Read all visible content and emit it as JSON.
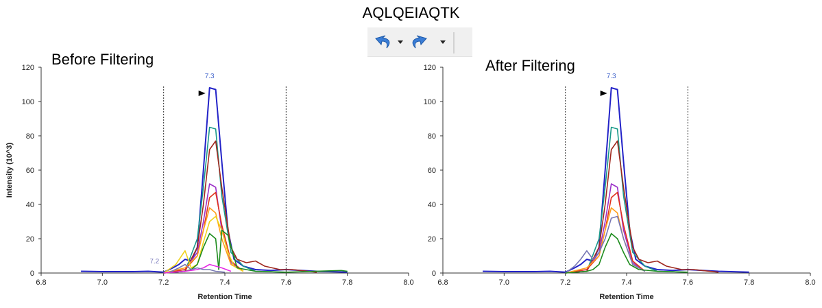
{
  "figure_title": "AQLQEIAQTK",
  "toolbar": {
    "undo_icon": "undo-icon",
    "redo_icon": "redo-icon",
    "dropdown_icon": "chevron-down-icon"
  },
  "colors": {
    "blue": "#2323c8",
    "teal": "#1a9a8a",
    "brown": "#a0281e",
    "purple": "#9b30c8",
    "red": "#e0321e",
    "orange": "#ffa01e",
    "yellow": "#f0d21e",
    "green": "#1e8c1e",
    "magenta": "#e628e6",
    "slate": "#7878b4"
  },
  "chart_data": [
    {
      "type": "line",
      "title": "Before Filtering",
      "xlabel": "Retention Time",
      "ylabel": "Intensity (10^3)",
      "xlim": [
        6.8,
        8.0
      ],
      "ylim": [
        0,
        120
      ],
      "xticks": [
        "6.8",
        "7.0",
        "7.2",
        "7.4",
        "7.6",
        "7.8",
        "8.0"
      ],
      "yticks": [
        "0",
        "20",
        "40",
        "60",
        "80",
        "100",
        "120"
      ],
      "boundaries": [
        7.2,
        7.6
      ],
      "peak_marker": {
        "x": 7.35,
        "y": 108
      },
      "annotations": [
        {
          "text": "7.3",
          "x": 7.35,
          "y": 112,
          "color": "#4466cc"
        },
        {
          "text": "7.2",
          "x": 7.17,
          "y": 4,
          "color": "#7777bb"
        }
      ],
      "series": [
        {
          "color": "blue",
          "x": [
            6.93,
            7.0,
            7.1,
            7.15,
            7.2,
            7.23,
            7.25,
            7.27,
            7.29,
            7.31,
            7.33,
            7.35,
            7.37,
            7.39,
            7.41,
            7.43,
            7.46,
            7.5,
            7.55,
            7.6,
            7.7,
            7.8
          ],
          "y": [
            1,
            0.8,
            0.8,
            1,
            0.5,
            3,
            5,
            8,
            7,
            15,
            60,
            108,
            107,
            65,
            25,
            8,
            4,
            2,
            1.5,
            2,
            1,
            0.5
          ]
        },
        {
          "color": "teal",
          "x": [
            7.2,
            7.27,
            7.31,
            7.33,
            7.35,
            7.37,
            7.39,
            7.42,
            7.46,
            7.5,
            7.6
          ],
          "y": [
            0,
            1,
            20,
            50,
            85,
            84,
            45,
            12,
            4,
            1,
            0.5
          ]
        },
        {
          "color": "brown",
          "x": [
            7.2,
            7.27,
            7.31,
            7.33,
            7.35,
            7.37,
            7.39,
            7.42,
            7.44,
            7.47,
            7.5,
            7.53,
            7.58,
            7.62,
            7.7
          ],
          "y": [
            0,
            1,
            15,
            40,
            72,
            77,
            50,
            15,
            8,
            6,
            7,
            4,
            2,
            2,
            0.5
          ]
        },
        {
          "color": "purple",
          "x": [
            7.2,
            7.27,
            7.31,
            7.33,
            7.35,
            7.37,
            7.39,
            7.42,
            7.46
          ],
          "y": [
            0,
            2,
            12,
            30,
            52,
            50,
            25,
            6,
            1
          ]
        },
        {
          "color": "red",
          "x": [
            7.2,
            7.27,
            7.31,
            7.33,
            7.35,
            7.37,
            7.39,
            7.42,
            7.46
          ],
          "y": [
            0,
            2,
            10,
            25,
            44,
            47,
            28,
            7,
            1
          ]
        },
        {
          "color": "orange",
          "x": [
            7.2,
            7.27,
            7.31,
            7.33,
            7.35,
            7.37,
            7.39,
            7.42,
            7.46
          ],
          "y": [
            0,
            3,
            10,
            25,
            38,
            35,
            20,
            5,
            1
          ]
        },
        {
          "color": "yellow",
          "x": [
            7.2,
            7.24,
            7.27,
            7.29,
            7.31,
            7.33,
            7.35,
            7.37,
            7.39,
            7.41,
            7.43,
            7.46
          ],
          "y": [
            0,
            5,
            13,
            3,
            5,
            18,
            30,
            33,
            25,
            12,
            4,
            1
          ]
        },
        {
          "color": "green",
          "x": [
            7.2,
            7.27,
            7.29,
            7.31,
            7.33,
            7.35,
            7.37,
            7.38,
            7.39,
            7.41,
            7.44,
            7.5,
            7.6,
            7.78,
            7.8
          ],
          "y": [
            0,
            1,
            2,
            5,
            15,
            23,
            20,
            2,
            25,
            22,
            3,
            1,
            0.5,
            1.5,
            1
          ]
        },
        {
          "color": "magenta",
          "x": [
            7.2,
            7.27,
            7.31,
            7.33,
            7.35,
            7.37,
            7.39,
            7.42
          ],
          "y": [
            0,
            1,
            2,
            3,
            5,
            4,
            3,
            1
          ]
        },
        {
          "color": "slate",
          "x": [
            7.22,
            7.25,
            7.27,
            7.29,
            7.31,
            7.33,
            7.35,
            7.37,
            7.4
          ],
          "y": [
            0.5,
            3,
            5,
            2,
            3,
            2,
            2,
            1,
            0.5
          ]
        }
      ]
    },
    {
      "type": "line",
      "title": "After Filtering",
      "xlabel": "Retention Time",
      "ylabel": "",
      "xlim": [
        6.8,
        8.0
      ],
      "ylim": [
        0,
        120
      ],
      "xticks": [
        "6.8",
        "7.0",
        "7.2",
        "7.4",
        "7.6",
        "7.8",
        "8.0"
      ],
      "yticks": [
        "0",
        "20",
        "40",
        "60",
        "80",
        "100",
        "120"
      ],
      "boundaries": [
        7.2,
        7.6
      ],
      "peak_marker": {
        "x": 7.35,
        "y": 108
      },
      "annotations": [
        {
          "text": "7.3",
          "x": 7.35,
          "y": 112,
          "color": "#4466cc"
        }
      ],
      "series": [
        {
          "color": "blue",
          "x": [
            6.93,
            7.0,
            7.1,
            7.15,
            7.2,
            7.23,
            7.25,
            7.27,
            7.29,
            7.31,
            7.33,
            7.35,
            7.37,
            7.39,
            7.41,
            7.43,
            7.46,
            7.5,
            7.55,
            7.6,
            7.7,
            7.8
          ],
          "y": [
            1,
            0.8,
            0.8,
            1,
            0.5,
            3,
            5,
            8,
            7,
            15,
            60,
            108,
            107,
            65,
            25,
            8,
            4,
            2,
            1.5,
            2,
            1,
            0.5
          ]
        },
        {
          "color": "teal",
          "x": [
            7.2,
            7.27,
            7.31,
            7.33,
            7.35,
            7.37,
            7.39,
            7.42,
            7.46,
            7.5,
            7.6
          ],
          "y": [
            0,
            1,
            20,
            50,
            85,
            84,
            45,
            12,
            4,
            1,
            0.5
          ]
        },
        {
          "color": "brown",
          "x": [
            7.2,
            7.27,
            7.31,
            7.33,
            7.35,
            7.37,
            7.39,
            7.42,
            7.44,
            7.47,
            7.5,
            7.53,
            7.58,
            7.62,
            7.7
          ],
          "y": [
            0,
            1,
            15,
            40,
            72,
            77,
            50,
            15,
            8,
            6,
            7,
            4,
            2,
            2,
            0.5
          ]
        },
        {
          "color": "purple",
          "x": [
            7.2,
            7.27,
            7.31,
            7.33,
            7.35,
            7.37,
            7.39,
            7.42,
            7.46
          ],
          "y": [
            0,
            2,
            12,
            30,
            52,
            50,
            25,
            6,
            1
          ]
        },
        {
          "color": "red",
          "x": [
            7.2,
            7.27,
            7.31,
            7.33,
            7.35,
            7.37,
            7.39,
            7.42,
            7.46
          ],
          "y": [
            0,
            2,
            10,
            25,
            44,
            47,
            28,
            7,
            1
          ]
        },
        {
          "color": "orange",
          "x": [
            7.2,
            7.27,
            7.31,
            7.33,
            7.35,
            7.37,
            7.39,
            7.42,
            7.46
          ],
          "y": [
            0,
            3,
            10,
            25,
            38,
            35,
            20,
            5,
            1
          ]
        },
        {
          "color": "slate",
          "x": [
            7.2,
            7.23,
            7.25,
            7.27,
            7.29,
            7.31,
            7.33,
            7.35,
            7.37,
            7.39,
            7.42,
            7.46
          ],
          "y": [
            0,
            4,
            8,
            13,
            8,
            12,
            20,
            32,
            33,
            20,
            5,
            1
          ]
        },
        {
          "color": "green",
          "x": [
            7.2,
            7.27,
            7.29,
            7.31,
            7.33,
            7.35,
            7.37,
            7.39,
            7.41,
            7.44,
            7.5,
            7.6
          ],
          "y": [
            0,
            1,
            2,
            5,
            15,
            23,
            20,
            12,
            5,
            2,
            1,
            0.5
          ]
        }
      ]
    }
  ]
}
